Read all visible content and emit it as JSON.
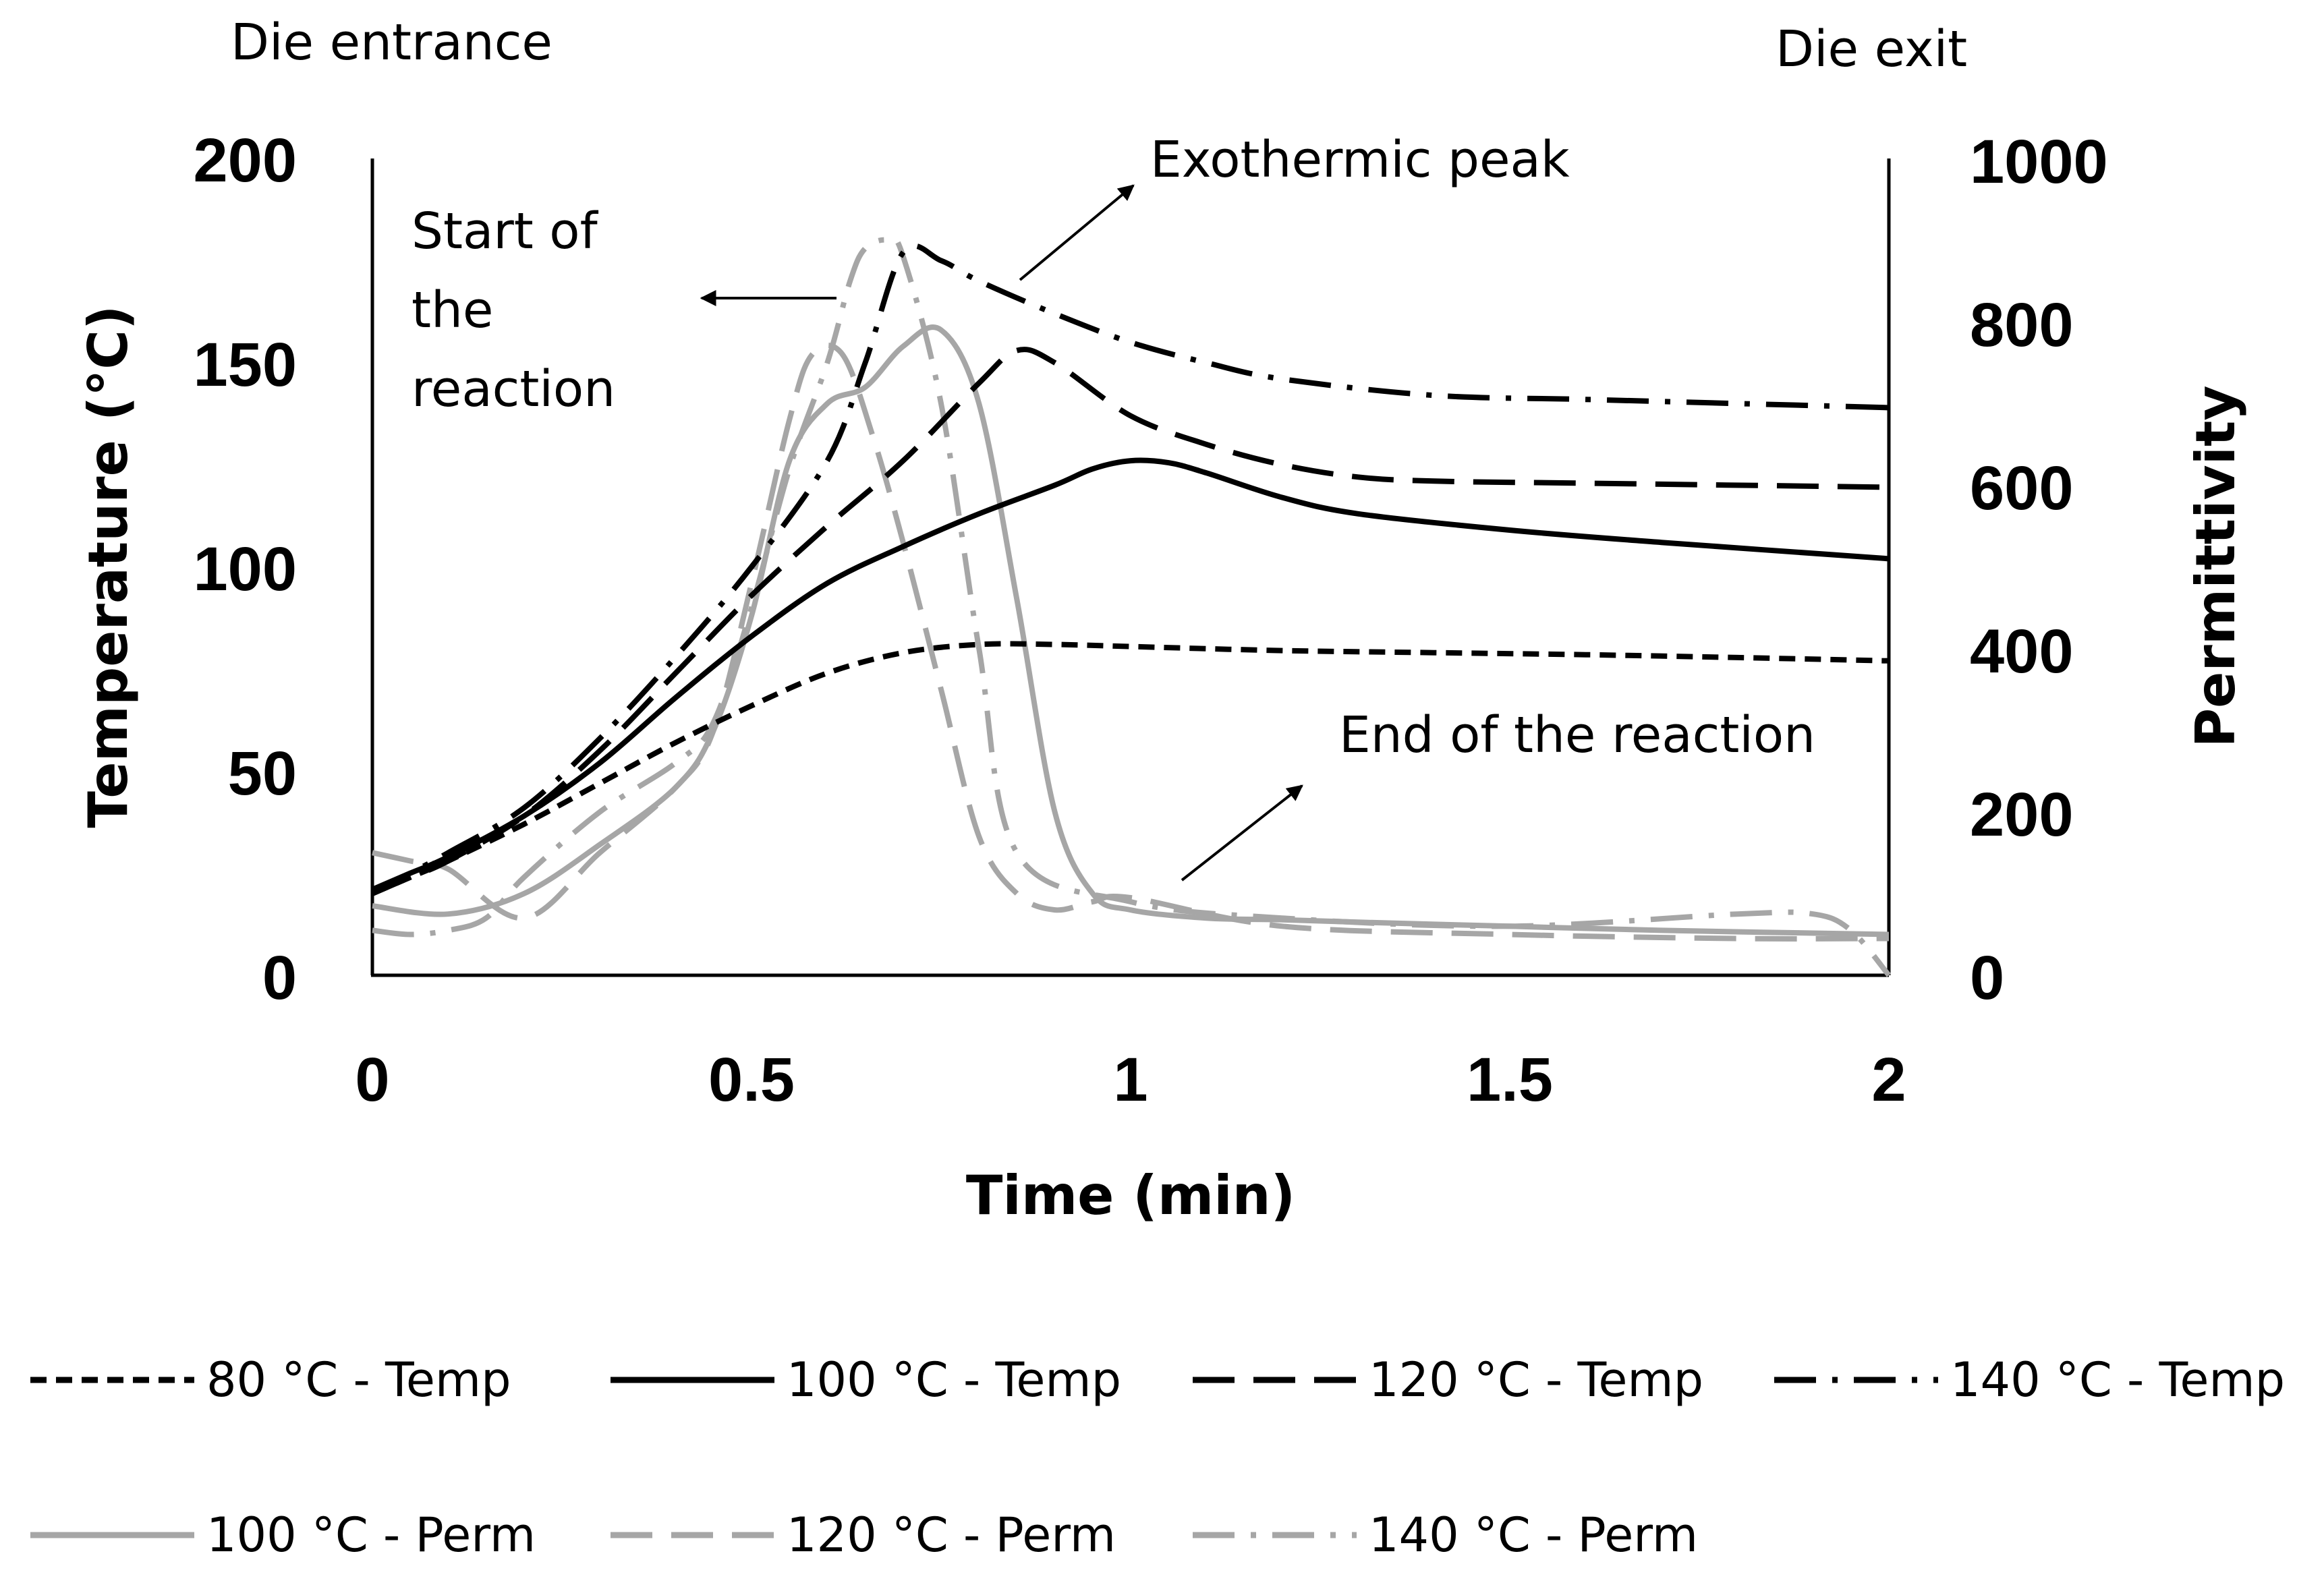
{
  "chart_data": {
    "type": "line",
    "xlabel": "Time (min)",
    "ylabel_left": "Temperature (°C)",
    "ylabel_right": "Permittivity",
    "xlim": [
      0,
      2
    ],
    "ylim_left": [
      0,
      200
    ],
    "ylim_right": [
      0,
      1000
    ],
    "x_ticks": [
      "0",
      "0.5",
      "1",
      "1.5",
      "2"
    ],
    "y_left_ticks": [
      "0",
      "50",
      "100",
      "150",
      "200"
    ],
    "y_right_ticks": [
      "0",
      "200",
      "400",
      "600",
      "800",
      "1000"
    ],
    "grid": false,
    "legend_position": "bottom",
    "annotations": {
      "die_entrance": "Die entrance",
      "die_exit": "Die exit",
      "start_reaction_lines": [
        "Start of",
        "the",
        "reaction"
      ],
      "exothermic_peak": "Exothermic peak",
      "end_reaction": "End of the reaction"
    },
    "series": [
      {
        "name": "80 °C - Temp",
        "axis": "left",
        "color": "#000000",
        "dash": "short",
        "x": [
          0,
          0.05,
          0.1,
          0.2,
          0.3,
          0.4,
          0.5,
          0.6,
          0.7,
          0.8,
          0.9,
          1.0,
          1.2,
          1.4,
          1.6,
          1.8,
          2.0
        ],
        "y": [
          20,
          24,
          28,
          37,
          47,
          57,
          66,
          74,
          79,
          81,
          81,
          80.5,
          79.5,
          79,
          78.5,
          77.8,
          77
        ]
      },
      {
        "name": "100 °C - Temp",
        "axis": "left",
        "color": "#000000",
        "dash": "solid",
        "x": [
          0,
          0.05,
          0.1,
          0.2,
          0.3,
          0.4,
          0.5,
          0.6,
          0.7,
          0.8,
          0.9,
          0.95,
          1.0,
          1.05,
          1.1,
          1.2,
          1.3,
          1.5,
          1.7,
          2.0
        ],
        "y": [
          21,
          25,
          29,
          39,
          52,
          68,
          83,
          96,
          105,
          113,
          120,
          124,
          126,
          125.5,
          123,
          117,
          113,
          109,
          106,
          102
        ]
      },
      {
        "name": "120 °C - Temp",
        "axis": "left",
        "color": "#000000",
        "dash": "long",
        "x": [
          0,
          0.05,
          0.1,
          0.2,
          0.3,
          0.4,
          0.5,
          0.6,
          0.7,
          0.8,
          0.85,
          0.9,
          1.0,
          1.1,
          1.2,
          1.3,
          1.4,
          1.6,
          2.0
        ],
        "y": [
          20,
          24,
          28,
          39,
          55,
          74,
          93,
          110,
          126,
          145,
          153,
          150,
          137,
          130,
          125,
          122,
          121,
          120.5,
          119.5
        ]
      },
      {
        "name": "140 °C - Temp",
        "axis": "left",
        "color": "#000000",
        "dash": "dashdot",
        "x": [
          0,
          0.05,
          0.1,
          0.2,
          0.3,
          0.4,
          0.5,
          0.6,
          0.65,
          0.7,
          0.75,
          0.8,
          0.9,
          1.0,
          1.1,
          1.2,
          1.4,
          1.6,
          1.8,
          2.0
        ],
        "y": [
          20,
          25,
          30,
          41,
          58,
          78,
          100,
          126,
          150,
          177,
          175,
          170,
          162,
          155,
          150,
          146,
          142,
          141,
          140,
          139
        ]
      },
      {
        "name": "100 °C - Perm",
        "axis": "right",
        "color": "#a6a6a6",
        "dash": "solid",
        "x": [
          0,
          0.1,
          0.2,
          0.3,
          0.4,
          0.45,
          0.5,
          0.55,
          0.6,
          0.65,
          0.7,
          0.75,
          0.8,
          0.85,
          0.9,
          0.95,
          1.0,
          1.1,
          1.2,
          1.3,
          1.5,
          1.7,
          2.0
        ],
        "y": [
          85,
          75,
          100,
          160,
          230,
          300,
          440,
          630,
          700,
          720,
          770,
          790,
          700,
          460,
          200,
          100,
          80,
          70,
          68,
          65,
          60,
          55,
          50
        ]
      },
      {
        "name": "120 °C - Perm",
        "axis": "right",
        "color": "#a6a6a6",
        "dash": "long",
        "x": [
          0,
          0.05,
          0.1,
          0.2,
          0.3,
          0.4,
          0.45,
          0.5,
          0.55,
          0.58,
          0.62,
          0.66,
          0.7,
          0.75,
          0.8,
          0.85,
          0.9,
          0.95,
          1.0,
          1.2,
          1.5,
          1.8,
          2.0
        ],
        "y": [
          150,
          140,
          130,
          70,
          150,
          230,
          300,
          480,
          680,
          760,
          760,
          660,
          530,
          350,
          170,
          100,
          80,
          90,
          95,
          60,
          50,
          45,
          45
        ]
      },
      {
        "name": "140 °C - Perm",
        "axis": "right",
        "color": "#a6a6a6",
        "dash": "dashdot",
        "x": [
          0,
          0.05,
          0.1,
          0.15,
          0.2,
          0.3,
          0.4,
          0.45,
          0.5,
          0.55,
          0.6,
          0.63,
          0.65,
          0.68,
          0.7,
          0.75,
          0.8,
          0.85,
          1.0,
          1.2,
          1.5,
          1.8,
          1.9,
          1.95,
          2.0
        ],
        "y": [
          55,
          50,
          55,
          70,
          120,
          200,
          260,
          310,
          450,
          620,
          750,
          850,
          890,
          900,
          880,
          700,
          400,
          150,
          90,
          70,
          60,
          75,
          75,
          55,
          0
        ]
      }
    ]
  }
}
